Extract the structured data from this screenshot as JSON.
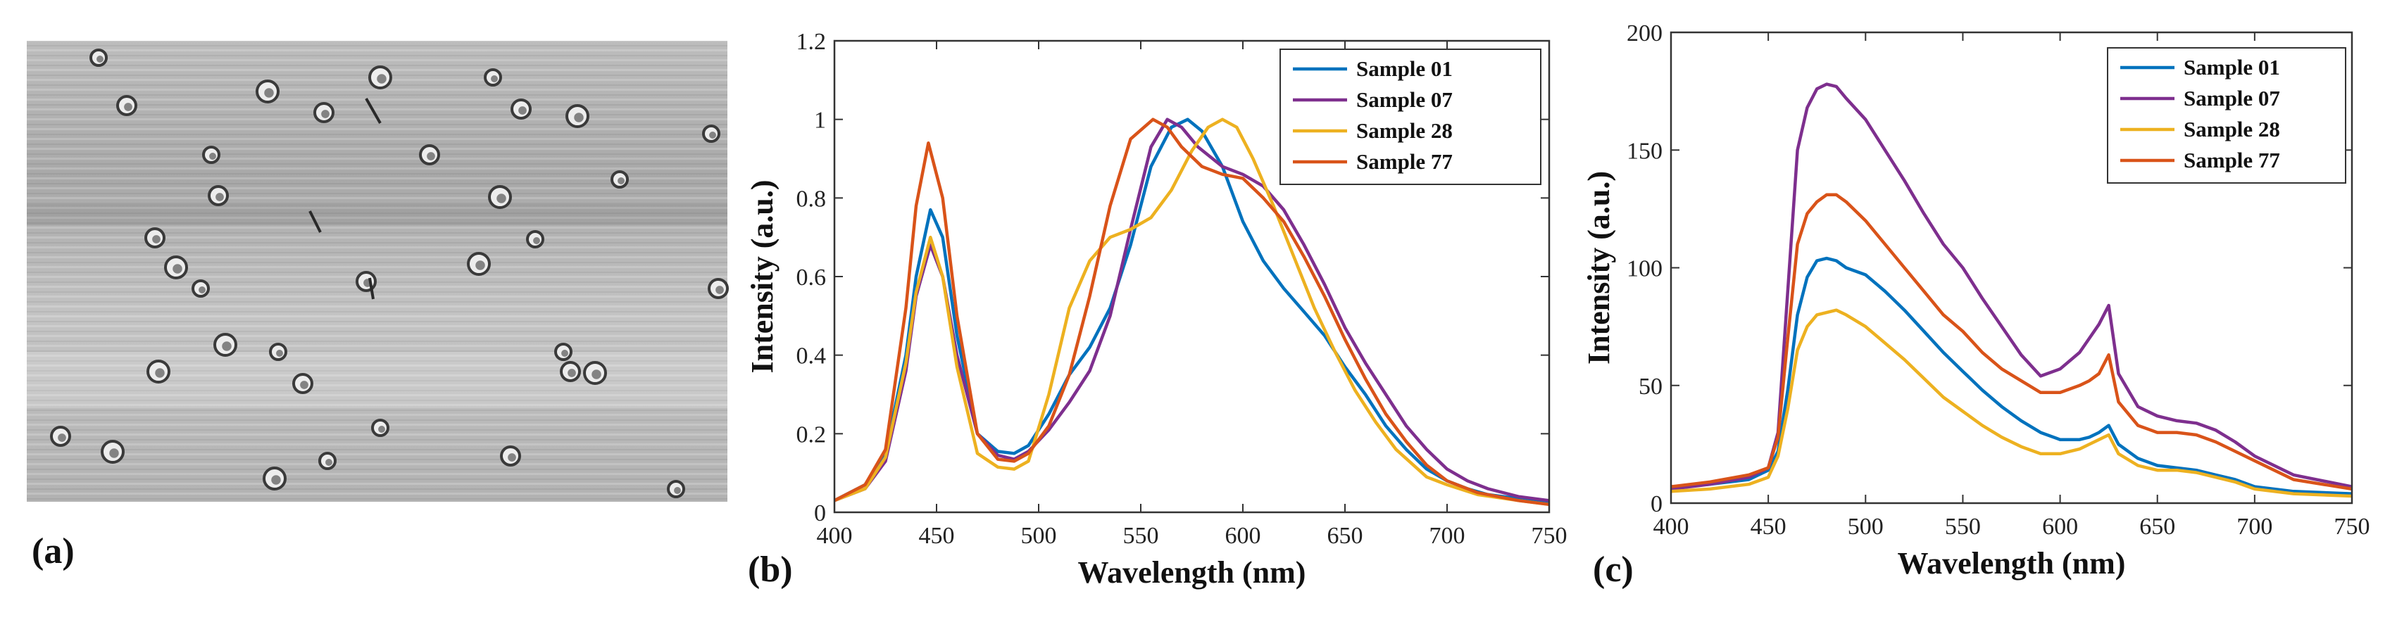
{
  "panels": {
    "a": {
      "label": "(a)",
      "description_icon": "microscope-image"
    },
    "b": {
      "label": "(b)"
    },
    "c": {
      "label": "(c)"
    }
  },
  "colors": {
    "Sample 01": "#0072bd",
    "Sample 07": "#7e2f8e",
    "Sample 28": "#edb120",
    "Sample 77": "#d95319"
  },
  "chart_data": [
    {
      "id": "b",
      "type": "line",
      "title": "",
      "xlabel": "Wavelength (nm)",
      "ylabel": "Intensity (a.u.)",
      "xlim": [
        400,
        750
      ],
      "ylim": [
        0,
        1.2
      ],
      "xticks": [
        400,
        450,
        500,
        550,
        600,
        650,
        700,
        750
      ],
      "yticks": [
        0,
        0.2,
        0.4,
        0.6,
        0.8,
        1,
        1.2
      ],
      "ytick_labels": [
        "0",
        "0.2",
        "0.4",
        "0.6",
        "0.8",
        "1",
        "1.2"
      ],
      "legend": "top-right",
      "series": [
        {
          "name": "Sample 01",
          "x": [
            400,
            415,
            425,
            435,
            440,
            447,
            453,
            460,
            470,
            480,
            488,
            495,
            505,
            515,
            525,
            535,
            545,
            555,
            565,
            573,
            580,
            590,
            600,
            610,
            620,
            630,
            640,
            650,
            660,
            670,
            680,
            690,
            700,
            710,
            720,
            735,
            750
          ],
          "values": [
            0.03,
            0.07,
            0.15,
            0.4,
            0.6,
            0.77,
            0.7,
            0.45,
            0.2,
            0.155,
            0.15,
            0.17,
            0.25,
            0.35,
            0.42,
            0.52,
            0.68,
            0.88,
            0.98,
            1.0,
            0.97,
            0.88,
            0.74,
            0.64,
            0.57,
            0.51,
            0.45,
            0.37,
            0.3,
            0.22,
            0.16,
            0.11,
            0.08,
            0.06,
            0.045,
            0.035,
            0.025
          ]
        },
        {
          "name": "Sample 07",
          "x": [
            400,
            415,
            425,
            435,
            440,
            447,
            453,
            460,
            470,
            480,
            488,
            495,
            505,
            515,
            525,
            535,
            545,
            555,
            563,
            570,
            578,
            590,
            600,
            610,
            620,
            630,
            640,
            650,
            660,
            670,
            680,
            690,
            700,
            710,
            720,
            735,
            750
          ],
          "values": [
            0.03,
            0.06,
            0.13,
            0.36,
            0.55,
            0.68,
            0.6,
            0.4,
            0.2,
            0.145,
            0.135,
            0.155,
            0.21,
            0.28,
            0.36,
            0.5,
            0.72,
            0.93,
            1.0,
            0.98,
            0.93,
            0.88,
            0.86,
            0.83,
            0.77,
            0.68,
            0.58,
            0.47,
            0.38,
            0.3,
            0.22,
            0.16,
            0.11,
            0.08,
            0.06,
            0.04,
            0.03
          ]
        },
        {
          "name": "Sample 28",
          "x": [
            400,
            415,
            425,
            435,
            440,
            447,
            453,
            460,
            470,
            480,
            488,
            495,
            505,
            515,
            525,
            535,
            545,
            555,
            565,
            575,
            583,
            590,
            597,
            605,
            615,
            625,
            635,
            645,
            655,
            665,
            675,
            690,
            700,
            715,
            735,
            750
          ],
          "values": [
            0.03,
            0.06,
            0.14,
            0.38,
            0.56,
            0.7,
            0.6,
            0.37,
            0.15,
            0.115,
            0.11,
            0.13,
            0.3,
            0.52,
            0.64,
            0.7,
            0.72,
            0.75,
            0.82,
            0.92,
            0.98,
            1.0,
            0.98,
            0.9,
            0.78,
            0.65,
            0.52,
            0.41,
            0.31,
            0.23,
            0.16,
            0.09,
            0.07,
            0.045,
            0.03,
            0.02
          ]
        },
        {
          "name": "Sample 77",
          "x": [
            400,
            415,
            425,
            435,
            440,
            446,
            453,
            460,
            470,
            480,
            488,
            495,
            505,
            515,
            525,
            535,
            545,
            556,
            563,
            570,
            580,
            590,
            600,
            610,
            620,
            630,
            640,
            650,
            660,
            670,
            680,
            690,
            700,
            715,
            735,
            750
          ],
          "values": [
            0.03,
            0.07,
            0.16,
            0.52,
            0.78,
            0.94,
            0.8,
            0.5,
            0.2,
            0.135,
            0.13,
            0.15,
            0.22,
            0.35,
            0.55,
            0.78,
            0.95,
            1.0,
            0.98,
            0.93,
            0.88,
            0.86,
            0.85,
            0.8,
            0.74,
            0.65,
            0.55,
            0.44,
            0.34,
            0.25,
            0.18,
            0.12,
            0.08,
            0.05,
            0.03,
            0.02
          ]
        }
      ]
    },
    {
      "id": "c",
      "type": "line",
      "title": "",
      "xlabel": "Wavelength (nm)",
      "ylabel": "Intensity (a.u.)",
      "xlim": [
        400,
        750
      ],
      "ylim": [
        0,
        200
      ],
      "xticks": [
        400,
        450,
        500,
        550,
        600,
        650,
        700,
        750
      ],
      "yticks": [
        0,
        50,
        100,
        150,
        200
      ],
      "ytick_labels": [
        "0",
        "50",
        "100",
        "150",
        "200"
      ],
      "legend": "top-right",
      "series": [
        {
          "name": "Sample 01",
          "x": [
            400,
            420,
            440,
            450,
            455,
            460,
            465,
            470,
            475,
            480,
            485,
            490,
            500,
            510,
            520,
            530,
            540,
            550,
            560,
            570,
            580,
            590,
            600,
            610,
            615,
            620,
            625,
            630,
            640,
            650,
            660,
            670,
            680,
            690,
            700,
            720,
            750
          ],
          "values": [
            7,
            8,
            10,
            14,
            22,
            48,
            80,
            96,
            103,
            104,
            103,
            100,
            97,
            90,
            82,
            73,
            64,
            56,
            48,
            41,
            35,
            30,
            27,
            27,
            28,
            30,
            33,
            25,
            19,
            16,
            15,
            14,
            12,
            10,
            7,
            5,
            4
          ]
        },
        {
          "name": "Sample 07",
          "x": [
            400,
            420,
            440,
            450,
            455,
            460,
            465,
            470,
            475,
            480,
            485,
            490,
            500,
            510,
            520,
            530,
            540,
            550,
            560,
            570,
            580,
            590,
            600,
            610,
            615,
            620,
            625,
            630,
            640,
            650,
            660,
            670,
            680,
            690,
            700,
            720,
            750
          ],
          "values": [
            6,
            8,
            11,
            15,
            30,
            90,
            150,
            168,
            176,
            178,
            177,
            172,
            163,
            150,
            137,
            123,
            110,
            100,
            87,
            75,
            63,
            54,
            57,
            64,
            70,
            76,
            84,
            55,
            41,
            37,
            35,
            34,
            31,
            26,
            20,
            12,
            7
          ]
        },
        {
          "name": "Sample 28",
          "x": [
            400,
            420,
            440,
            450,
            455,
            460,
            465,
            470,
            475,
            480,
            485,
            490,
            500,
            510,
            520,
            530,
            540,
            550,
            560,
            570,
            580,
            590,
            600,
            610,
            615,
            620,
            625,
            630,
            640,
            650,
            660,
            670,
            680,
            690,
            700,
            720,
            750
          ],
          "values": [
            5,
            6,
            8,
            11,
            20,
            40,
            65,
            75,
            80,
            81,
            82,
            80,
            75,
            68,
            61,
            53,
            45,
            39,
            33,
            28,
            24,
            21,
            21,
            23,
            25,
            27,
            29,
            21,
            16,
            14,
            14,
            13,
            11,
            9,
            6,
            4,
            3
          ]
        },
        {
          "name": "Sample 77",
          "x": [
            400,
            420,
            440,
            450,
            455,
            460,
            465,
            470,
            475,
            480,
            485,
            490,
            500,
            510,
            520,
            530,
            540,
            550,
            560,
            570,
            580,
            590,
            600,
            610,
            615,
            620,
            625,
            630,
            640,
            650,
            660,
            670,
            680,
            690,
            700,
            720,
            750
          ],
          "values": [
            7,
            9,
            12,
            15,
            28,
            70,
            110,
            123,
            128,
            131,
            131,
            128,
            120,
            110,
            100,
            90,
            80,
            73,
            64,
            57,
            52,
            47,
            47,
            50,
            52,
            55,
            63,
            43,
            33,
            30,
            30,
            29,
            26,
            22,
            18,
            10,
            6
          ]
        }
      ]
    }
  ]
}
